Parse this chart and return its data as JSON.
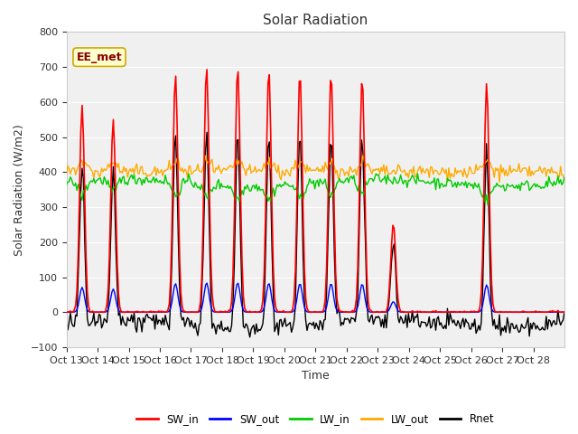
{
  "title": "Solar Radiation",
  "ylabel": "Solar Radiation (W/m2)",
  "xlabel": "Time",
  "ylim": [
    -100,
    800
  ],
  "xlim": [
    0,
    16
  ],
  "annotation": "EE_met",
  "plot_bg": "#f0f0f0",
  "series_colors": {
    "SW_in": "#ff0000",
    "SW_out": "#0000ff",
    "LW_in": "#00cc00",
    "LW_out": "#ffaa00",
    "Rnet": "#000000"
  },
  "xtick_labels": [
    "Oct 13",
    "Oct 14",
    "Oct 15",
    "Oct 16",
    "Oct 17",
    "Oct 18",
    "Oct 19",
    "Oct 20",
    "Oct 21",
    "Oct 22",
    "Oct 23",
    "Oct 24",
    "Oct 25",
    "Oct 26",
    "Oct 27",
    "Oct 28"
  ],
  "ytick_values": [
    -100,
    0,
    100,
    200,
    300,
    400,
    500,
    600,
    700,
    800
  ],
  "n_days": 16,
  "hours_per_day": 24
}
